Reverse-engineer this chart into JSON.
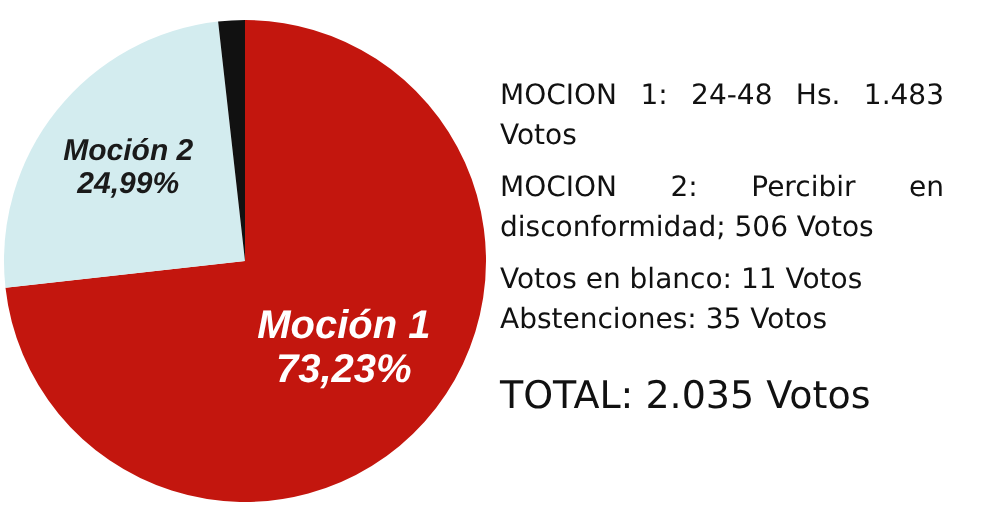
{
  "chart_data": {
    "type": "pie",
    "categories": [
      "Moción 1",
      "Moción 2",
      null
    ],
    "values": [
      73.23,
      24.99,
      1.78
    ],
    "colors": [
      "#c3160e",
      "#d3ecef",
      "#111111"
    ],
    "value_labels": [
      "73,23%",
      "24,99%",
      null
    ],
    "legend": false,
    "annotations": [
      "MOCION 1: 24-48 Hs. 1.483 Votos",
      "MOCION 2: Percibir en disconformidad; 506 Votos",
      "Votos en blanco: 11 Votos",
      "Abstenciones: 35 Votos",
      "TOTAL: 2.035 Votos"
    ]
  }
}
